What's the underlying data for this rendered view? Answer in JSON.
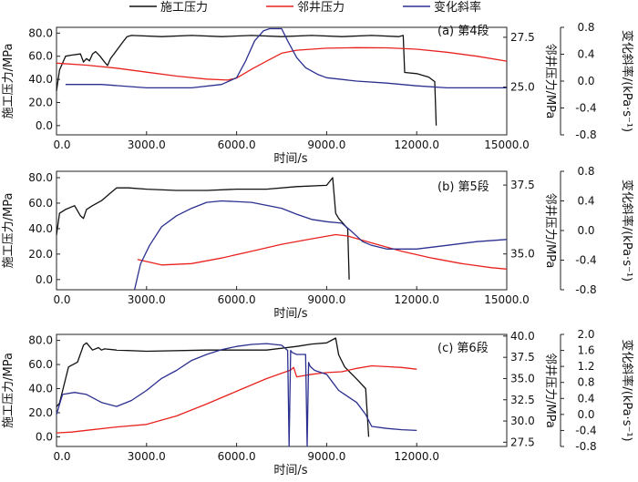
{
  "legend": [
    {
      "label": "施工压力",
      "color": "#111111"
    },
    {
      "label": "邻井压力",
      "color": "#e8231f"
    },
    {
      "label": "变化斜率",
      "color": "#2b2f8f"
    }
  ],
  "chart_data": [
    {
      "type": "line",
      "title": "(a) 第4段",
      "xlabel": "时间/s",
      "ylabel_left": "施工压力/MPa",
      "ylabel_right": "邻井压力/MPa",
      "ylabel_far": "变化斜率/(kPa·s⁻¹)",
      "xlim": [
        0,
        15000
      ],
      "xticks": [
        0,
        3000,
        6000,
        9000,
        12000,
        15000
      ],
      "xtick_labels": [
        "0.0",
        "3000.0",
        "6000.0",
        "9000.0",
        "12000.0",
        "15000.0"
      ],
      "left_axis": {
        "lim": [
          -8,
          85
        ],
        "ticks": [
          0,
          20,
          40,
          60,
          80
        ],
        "labels": [
          "0.0",
          "20.0",
          "40.0",
          "60.0",
          "80.0"
        ]
      },
      "right_axis": {
        "lim": [
          22.6,
          28.0
        ],
        "ticks": [
          25.0,
          27.5
        ],
        "labels": [
          "25.0",
          "27.5"
        ]
      },
      "far_axis": {
        "lim": [
          -0.8,
          0.8
        ],
        "ticks": [
          -0.8,
          -0.4,
          0.0,
          0.4,
          0.8
        ],
        "labels": [
          "-0.8",
          "-0.4",
          "0.0",
          "0.4",
          "0.8"
        ]
      },
      "series": [
        {
          "name": "施工压力",
          "color": "#111111",
          "axis": "left",
          "x": [
            0,
            100,
            300,
            500,
            800,
            900,
            1000,
            1100,
            1200,
            1300,
            1450,
            1600,
            1700,
            1800,
            2000,
            2200,
            2350,
            2500,
            3500,
            4500,
            5500,
            6500,
            7500,
            8500,
            9500,
            10500,
            11400,
            11550,
            11600,
            12000,
            12400,
            12600,
            12650
          ],
          "y": [
            30,
            48,
            60,
            61,
            62,
            55,
            58,
            56,
            62,
            64,
            60,
            55,
            52,
            58,
            65,
            72,
            77,
            78,
            77,
            78,
            77,
            78,
            77,
            78,
            77,
            78,
            77,
            78,
            46,
            45,
            42,
            38,
            0
          ]
        },
        {
          "name": "邻井压力",
          "color": "#e8231f",
          "axis": "right",
          "x": [
            0,
            1000,
            2000,
            3000,
            4000,
            5000,
            5700,
            6000,
            6500,
            7000,
            7500,
            8000,
            9000,
            10000,
            11000,
            12000,
            13000,
            14000,
            15000
          ],
          "y": [
            26.2,
            26.1,
            25.95,
            25.75,
            25.55,
            25.4,
            25.35,
            25.45,
            25.9,
            26.3,
            26.7,
            26.85,
            26.95,
            26.98,
            26.97,
            26.9,
            26.75,
            26.55,
            26.3
          ]
        },
        {
          "name": "变化斜率",
          "color": "#2b2f8f",
          "axis": "far",
          "x": [
            300,
            1500,
            3000,
            4500,
            5500,
            6000,
            6300,
            6600,
            6900,
            7100,
            7500,
            7700,
            8000,
            8300,
            8700,
            9000,
            10000,
            11000,
            12000,
            13000,
            14000,
            15000
          ],
          "y": [
            -0.05,
            -0.05,
            -0.1,
            -0.1,
            -0.05,
            0.05,
            0.3,
            0.6,
            0.75,
            0.78,
            0.78,
            0.6,
            0.35,
            0.2,
            0.1,
            0.05,
            0.0,
            -0.03,
            -0.07,
            -0.1,
            -0.1,
            -0.1
          ]
        }
      ]
    },
    {
      "type": "line",
      "title": "(b) 第5段",
      "xlabel": "时间/s",
      "ylabel_left": "施工压力/MPa",
      "ylabel_right": "邻井压力/MPa",
      "ylabel_far": "变化斜率/(kPa·s⁻¹)",
      "xlim": [
        0,
        15000
      ],
      "xticks": [
        0,
        3000,
        6000,
        9000,
        12000,
        15000
      ],
      "xtick_labels": [
        "0.0",
        "3000.0",
        "6000.0",
        "9000.0",
        "12000.0",
        "15000.0"
      ],
      "left_axis": {
        "lim": [
          -8,
          85
        ],
        "ticks": [
          0,
          20,
          40,
          60,
          80
        ],
        "labels": [
          "0.0",
          "20.0",
          "40.0",
          "60.0",
          "80.0"
        ]
      },
      "right_axis": {
        "lim": [
          33.7,
          38.0
        ],
        "ticks": [
          35.0,
          37.5
        ],
        "labels": [
          "35.0",
          "37.5"
        ]
      },
      "far_axis": {
        "lim": [
          -0.8,
          0.8
        ],
        "ticks": [
          -0.8,
          -0.4,
          0.0,
          0.4,
          0.8
        ],
        "labels": [
          "-0.8",
          "-0.4",
          "0.0",
          "0.4",
          "0.8"
        ]
      },
      "series": [
        {
          "name": "施工压力",
          "color": "#111111",
          "axis": "left",
          "x": [
            0,
            100,
            300,
            600,
            800,
            900,
            1000,
            1200,
            1500,
            1800,
            2000,
            2400,
            3000,
            4000,
            5000,
            6000,
            7000,
            8000,
            9000,
            9200,
            9300,
            9400,
            9700,
            9750
          ],
          "y": [
            35,
            52,
            55,
            58,
            50,
            48,
            55,
            58,
            62,
            68,
            72,
            72,
            71,
            70,
            70,
            71,
            71,
            73,
            74,
            80,
            52,
            48,
            40,
            0
          ]
        },
        {
          "name": "邻井压力",
          "color": "#e8231f",
          "axis": "right",
          "x": [
            2700,
            3500,
            4500,
            5500,
            6500,
            7500,
            8500,
            9300,
            9700,
            10500,
            11500,
            12500,
            13500,
            14500,
            15000
          ],
          "y": [
            34.8,
            34.6,
            34.65,
            34.85,
            35.1,
            35.35,
            35.55,
            35.7,
            35.65,
            35.4,
            35.1,
            34.85,
            34.65,
            34.5,
            34.45
          ]
        },
        {
          "name": "变化斜率",
          "color": "#2b2f8f",
          "axis": "far",
          "x": [
            2600,
            2800,
            3100,
            3500,
            4000,
            4500,
            5000,
            5500,
            6500,
            7500,
            8000,
            8500,
            9000,
            9500,
            9800,
            10200,
            10500,
            11000,
            12000,
            13000,
            14000,
            15000
          ],
          "y": [
            -0.8,
            -0.45,
            -0.2,
            0.05,
            0.2,
            0.3,
            0.38,
            0.4,
            0.38,
            0.3,
            0.22,
            0.15,
            0.12,
            0.1,
            0.0,
            -0.15,
            -0.2,
            -0.25,
            -0.25,
            -0.2,
            -0.15,
            -0.12
          ]
        }
      ]
    },
    {
      "type": "line",
      "title": "(c) 第6段",
      "xlabel": "时间/s",
      "ylabel_left": "施工压力/MPa",
      "ylabel_right": "邻井压力/MPa",
      "ylabel_far": "变化斜率/(kPa·s⁻¹)",
      "xlim": [
        0,
        15000
      ],
      "xticks": [
        0,
        3000,
        6000,
        9000,
        12000
      ],
      "xtick_labels": [
        "0.0",
        "3000.0",
        "6000.0",
        "9000.0",
        "12000.0"
      ],
      "left_axis": {
        "lim": [
          -8,
          85
        ],
        "ticks": [
          0,
          20,
          40,
          60,
          80
        ],
        "labels": [
          "0.0",
          "20.0",
          "40.0",
          "60.0",
          "80.0"
        ]
      },
      "right_axis": {
        "lim": [
          27.0,
          40.2
        ],
        "ticks": [
          27.5,
          30.0,
          32.5,
          35.0,
          37.5,
          40.0
        ],
        "labels": [
          "27.5",
          "30.0",
          "32.5",
          "35.0",
          "37.5",
          "40.0"
        ]
      },
      "far_axis": {
        "lim": [
          -0.8,
          2.0
        ],
        "ticks": [
          -0.8,
          -0.4,
          0.0,
          0.4,
          0.8,
          1.2,
          1.6,
          2.0
        ],
        "labels": [
          "-0.8",
          "-0.4",
          "0.0",
          "0.4",
          "0.8",
          "1.2",
          "1.6",
          "2.0"
        ]
      },
      "series": [
        {
          "name": "施工压力",
          "color": "#111111",
          "axis": "left",
          "x": [
            0,
            100,
            300,
            400,
            700,
            900,
            1000,
            1100,
            1200,
            1400,
            1500,
            1600,
            2000,
            3000,
            5000,
            7000,
            8000,
            8500,
            9000,
            9300,
            9400,
            9600,
            10000,
            10300,
            10400
          ],
          "y": [
            25,
            28,
            48,
            58,
            62,
            76,
            78,
            75,
            72,
            74,
            72,
            73,
            72,
            71,
            72,
            72,
            75,
            77,
            78,
            82,
            68,
            58,
            48,
            40,
            0
          ]
        },
        {
          "name": "邻井压力",
          "color": "#e8231f",
          "axis": "right",
          "x": [
            0,
            500,
            1000,
            2000,
            3000,
            4000,
            5000,
            6000,
            7000,
            7800,
            7900,
            8000,
            8500,
            9000,
            9500,
            10000,
            10500,
            11000,
            11500,
            12000
          ],
          "y": [
            28.6,
            28.7,
            28.9,
            29.3,
            29.6,
            30.6,
            32.0,
            33.5,
            35.0,
            36.0,
            36.3,
            35.2,
            35.5,
            35.7,
            35.8,
            36.2,
            36.5,
            36.4,
            36.3,
            36.1
          ]
        },
        {
          "name": "变化斜率",
          "color": "#2b2f8f",
          "axis": "far",
          "x": [
            0,
            200,
            600,
            1000,
            1500,
            2000,
            2500,
            3000,
            3500,
            4000,
            4500,
            5000,
            5500,
            6000,
            6500,
            7000,
            7500,
            7700,
            7750,
            7800,
            7850,
            8000,
            8300,
            8350,
            8400,
            8450,
            8600,
            9000,
            9200,
            9400,
            9600,
            10000,
            10300,
            10500,
            11000,
            11500,
            12000
          ],
          "y": [
            0.0,
            0.5,
            0.55,
            0.5,
            0.3,
            0.2,
            0.35,
            0.6,
            0.9,
            1.1,
            1.35,
            1.5,
            1.62,
            1.7,
            1.75,
            1.77,
            1.73,
            1.6,
            -0.8,
            1.6,
            1.55,
            1.5,
            1.5,
            -0.8,
            1.3,
            1.2,
            1.1,
            1.0,
            0.8,
            0.6,
            0.5,
            0.3,
            0.0,
            -0.3,
            -0.35,
            -0.38,
            -0.4
          ]
        }
      ]
    }
  ]
}
